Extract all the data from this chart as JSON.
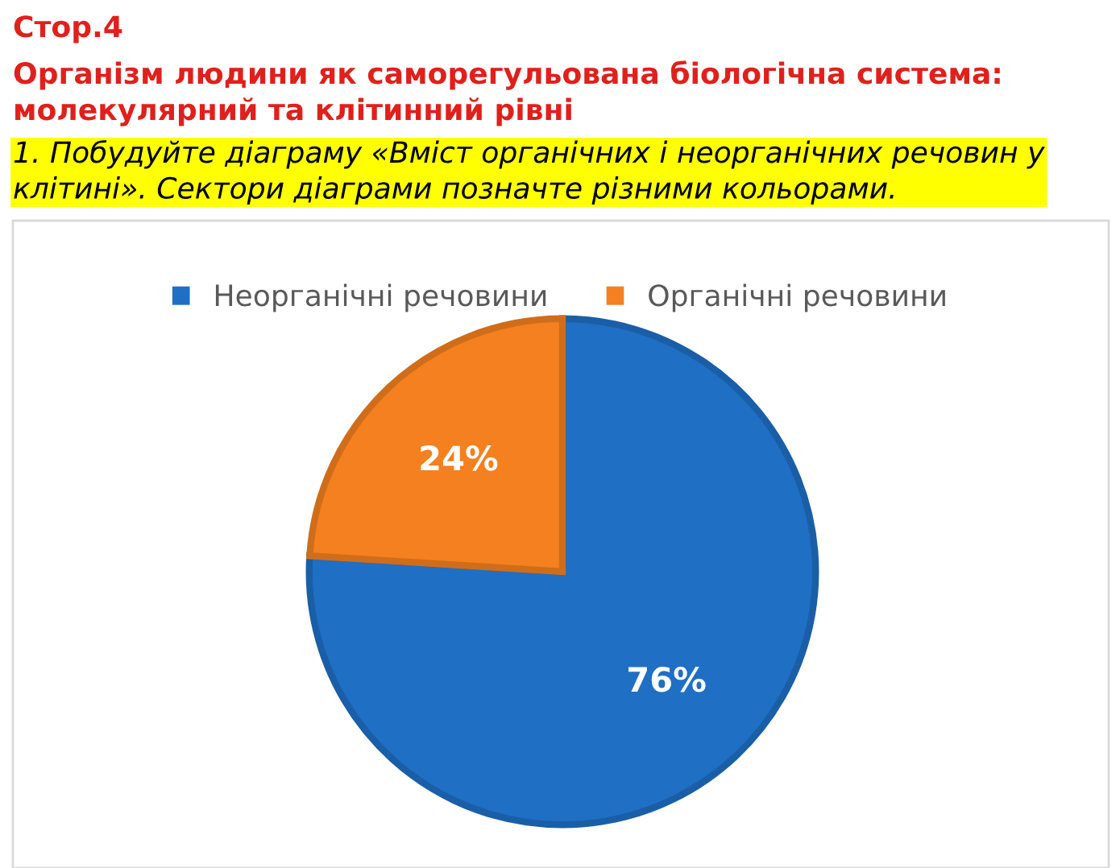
{
  "chart_data": {
    "type": "pie",
    "title": "Стор.4",
    "subtitle": "Організм людини як саморегульована біологічна система:\nмолекулярний та клітинний рівні",
    "annotations": [
      "1. Побудуйте діаграму «Вміст органічних і неорганічних речовин у\nклітині». Сектори діаграми позначте різними кольорами."
    ],
    "categories": [
      "Неорганічні речовини",
      "Органічні речовини"
    ],
    "values": [
      76,
      24
    ],
    "colors": [
      "#1f6fc4",
      "#f5801f"
    ],
    "value_labels": [
      "76%",
      "24%"
    ],
    "legend": "top"
  }
}
